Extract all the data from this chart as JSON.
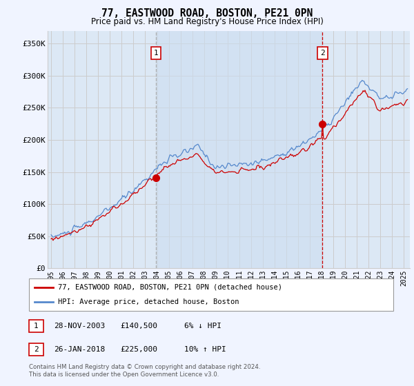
{
  "title": "77, EASTWOOD ROAD, BOSTON, PE21 0PN",
  "subtitle": "Price paid vs. HM Land Registry's House Price Index (HPI)",
  "ylabel_ticks": [
    "£0",
    "£50K",
    "£100K",
    "£150K",
    "£200K",
    "£250K",
    "£300K",
    "£350K"
  ],
  "ytick_values": [
    0,
    50000,
    100000,
    150000,
    200000,
    250000,
    300000,
    350000
  ],
  "ylim": [
    0,
    370000
  ],
  "xlim_start": 1994.7,
  "xlim_end": 2025.5,
  "purchase1_x": 2003.91,
  "purchase1_y": 140500,
  "purchase1_label": "1",
  "purchase2_x": 2018.07,
  "purchase2_y": 225000,
  "purchase2_label": "2",
  "hpi_line_color": "#5588cc",
  "price_line_color": "#cc0000",
  "vline1_color": "#aaaaaa",
  "vline2_color": "#cc0000",
  "vline1_style": "--",
  "vline2_style": "--",
  "shaded_region_color": "#dce8f5",
  "grid_color": "#cccccc",
  "background_color": "#f0f4ff",
  "plot_bg_color": "#dce8f5",
  "legend_label1": "77, EASTWOOD ROAD, BOSTON, PE21 0PN (detached house)",
  "legend_label2": "HPI: Average price, detached house, Boston",
  "note1_num": "1",
  "note1_date": "28-NOV-2003",
  "note1_price": "£140,500",
  "note1_hpi": "6% ↓ HPI",
  "note2_num": "2",
  "note2_date": "26-JAN-2018",
  "note2_price": "£225,000",
  "note2_hpi": "10% ↑ HPI",
  "footer": "Contains HM Land Registry data © Crown copyright and database right 2024.\nThis data is licensed under the Open Government Licence v3.0."
}
